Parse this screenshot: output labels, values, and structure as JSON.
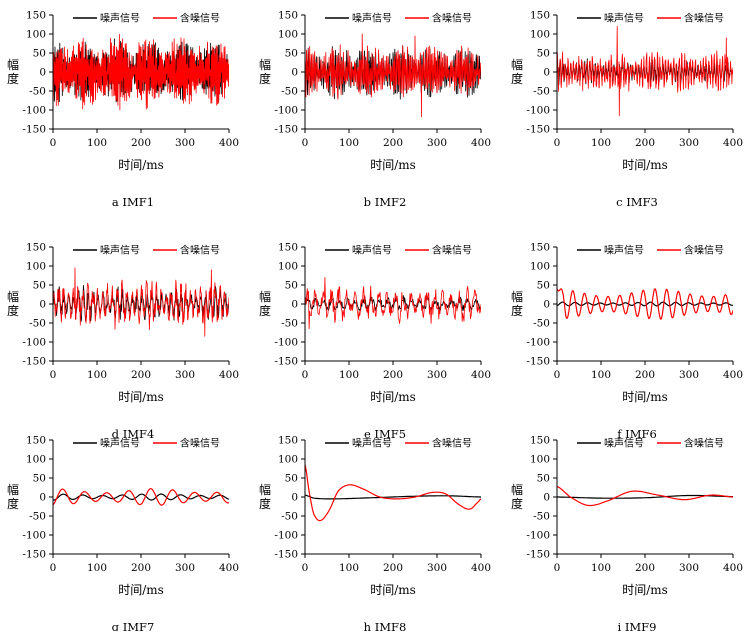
{
  "figure": {
    "series_names": [
      "噪声信号",
      "含噪信号"
    ],
    "colors": {
      "noise": "#000000",
      "noisy": "#ff0000",
      "axis": "#000000"
    }
  },
  "chart_data": [
    {
      "type": "line",
      "panel_id": "a",
      "caption": "a  IMF1",
      "xlabel": "时间/ms",
      "ylabel": "幅度",
      "xlim": [
        0,
        400
      ],
      "ylim": [
        -150,
        150
      ],
      "xticks": [
        "0",
        "100",
        "200",
        "300",
        "400"
      ],
      "yticks": [
        "150",
        "100",
        "50",
        "0",
        "-50",
        "-100",
        "-150"
      ],
      "legend": [
        "噪声信号",
        "含噪信号"
      ],
      "series": [
        {
          "name": "噪声信号",
          "color": "#000000",
          "style": "noise",
          "amp": 75,
          "cycles": 180,
          "points": 700,
          "seed": 11,
          "peaks": []
        },
        {
          "name": "含噪信号",
          "color": "#ff0000",
          "style": "noise",
          "amp": 85,
          "cycles": 180,
          "points": 700,
          "seed": 12,
          "peaks": []
        }
      ]
    },
    {
      "type": "line",
      "panel_id": "b",
      "caption": "b  IMF2",
      "xlabel": "时间/ms",
      "ylabel": "幅度",
      "xlim": [
        0,
        400
      ],
      "ylim": [
        -150,
        150
      ],
      "xticks": [
        "0",
        "100",
        "200",
        "300",
        "400"
      ],
      "yticks": [
        "150",
        "100",
        "50",
        "0",
        "-50",
        "-100",
        "-150"
      ],
      "legend": [
        "噪声信号",
        "含噪信号"
      ],
      "series": [
        {
          "name": "噪声信号",
          "color": "#000000",
          "style": "noise",
          "amp": 62,
          "cycles": 110,
          "points": 600,
          "seed": 21,
          "peaks": []
        },
        {
          "name": "含噪信号",
          "color": "#ff0000",
          "style": "noise",
          "amp": 62,
          "cycles": 110,
          "points": 600,
          "seed": 22,
          "peaks": [
            [
              130,
              100
            ],
            [
              250,
              95
            ],
            [
              265,
              -118
            ]
          ]
        }
      ]
    },
    {
      "type": "line",
      "panel_id": "c",
      "caption": "c  IMF3",
      "xlabel": "时间/ms",
      "ylabel": "幅度",
      "xlim": [
        0,
        400
      ],
      "ylim": [
        -150,
        150
      ],
      "xticks": [
        "0",
        "100",
        "200",
        "300",
        "400"
      ],
      "yticks": [
        "150",
        "100",
        "50",
        "0",
        "-50",
        "-100",
        "-150"
      ],
      "legend": [
        "噪声信号",
        "含噪信号"
      ],
      "series": [
        {
          "name": "噪声信号",
          "color": "#000000",
          "style": "noise",
          "amp": 30,
          "cycles": 65,
          "points": 500,
          "seed": 31,
          "peaks": []
        },
        {
          "name": "含噪信号",
          "color": "#ff0000",
          "style": "noise",
          "amp": 50,
          "cycles": 65,
          "points": 500,
          "seed": 32,
          "peaks": [
            [
              137,
              120
            ],
            [
              142,
              -115
            ],
            [
              385,
              90
            ]
          ]
        }
      ]
    },
    {
      "type": "line",
      "panel_id": "d",
      "caption": "d  IMF4",
      "xlabel": "时间/ms",
      "ylabel": "幅度",
      "xlim": [
        0,
        400
      ],
      "ylim": [
        -150,
        150
      ],
      "xticks": [
        "0",
        "100",
        "200",
        "300",
        "400"
      ],
      "yticks": [
        "150",
        "100",
        "50",
        "0",
        "-50",
        "-100",
        "-150"
      ],
      "legend": [
        "噪声信号",
        "含噪信号"
      ],
      "series": [
        {
          "name": "噪声信号",
          "color": "#000000",
          "style": "noise",
          "amp": 42,
          "cycles": 36,
          "points": 400,
          "seed": 41,
          "peaks": []
        },
        {
          "name": "含噪信号",
          "color": "#ff0000",
          "style": "noise",
          "amp": 58,
          "cycles": 36,
          "points": 400,
          "seed": 42,
          "peaks": [
            [
              50,
              95
            ],
            [
              345,
              -85
            ],
            [
              360,
              90
            ]
          ]
        }
      ]
    },
    {
      "type": "line",
      "panel_id": "e",
      "caption": "e  IMF5",
      "xlabel": "时间/ms",
      "ylabel": "幅度",
      "xlim": [
        0,
        400
      ],
      "ylim": [
        -150,
        150
      ],
      "xticks": [
        "0",
        "100",
        "200",
        "300",
        "400"
      ],
      "yticks": [
        "150",
        "100",
        "50",
        "0",
        "-50",
        "-100",
        "-150"
      ],
      "legend": [
        "噪声信号",
        "含噪信号"
      ],
      "series": [
        {
          "name": "噪声信号",
          "color": "#000000",
          "style": "noise",
          "amp": 20,
          "cycles": 22,
          "points": 300,
          "seed": 51,
          "peaks": []
        },
        {
          "name": "含噪信号",
          "color": "#ff0000",
          "style": "noise",
          "amp": 45,
          "cycles": 22,
          "points": 300,
          "seed": 52,
          "peaks": [
            [
              45,
              70
            ],
            [
              10,
              -65
            ]
          ]
        }
      ]
    },
    {
      "type": "line",
      "panel_id": "f",
      "caption": "f  IMF6",
      "xlabel": "时间/ms",
      "ylabel": "幅度",
      "xlim": [
        0,
        400
      ],
      "ylim": [
        -150,
        150
      ],
      "xticks": [
        "0",
        "100",
        "200",
        "300",
        "400"
      ],
      "yticks": [
        "150",
        "100",
        "50",
        "0",
        "-50",
        "-100",
        "-150"
      ],
      "legend": [
        "噪声信号",
        "含噪信号"
      ],
      "series": [
        {
          "name": "噪声信号",
          "color": "#000000",
          "style": "wave",
          "amp": 5,
          "cycles": 14,
          "points": 300,
          "seed": 61,
          "decay": 0
        },
        {
          "name": "含噪信号",
          "color": "#ff0000",
          "style": "wave",
          "amp": 40,
          "cycles": 15,
          "points": 400,
          "seed": 62,
          "decay": 0,
          "start": 40
        }
      ]
    },
    {
      "type": "line",
      "panel_id": "g",
      "caption": "g  IMF7",
      "xlabel": "时间/ms",
      "ylabel": "幅度",
      "xlim": [
        0,
        400
      ],
      "ylim": [
        -150,
        150
      ],
      "xticks": [
        "0",
        "100",
        "200",
        "300",
        "400"
      ],
      "yticks": [
        "150",
        "100",
        "50",
        "0",
        "-50",
        "-100",
        "-150"
      ],
      "legend": [
        "噪声信号",
        "含噪信号"
      ],
      "series": [
        {
          "name": "噪声信号",
          "color": "#000000",
          "style": "wave",
          "amp": 8,
          "cycles": 9,
          "points": 300,
          "seed": 71,
          "decay": 0
        },
        {
          "name": "含噪信号",
          "color": "#ff0000",
          "style": "wave",
          "amp": 22,
          "cycles": 8,
          "points": 300,
          "seed": 72,
          "decay": 0
        }
      ]
    },
    {
      "type": "line",
      "panel_id": "h",
      "caption": "h  IMF8",
      "xlabel": "时间/ms",
      "ylabel": "幅度",
      "xlim": [
        0,
        400
      ],
      "ylim": [
        -150,
        150
      ],
      "xticks": [
        "0",
        "100",
        "200",
        "300",
        "400"
      ],
      "yticks": [
        "150",
        "100",
        "50",
        "0",
        "-50",
        "-100",
        "-150"
      ],
      "legend": [
        "噪声信号",
        "含噪信号"
      ],
      "series": [
        {
          "name": "噪声信号",
          "color": "#000000",
          "style": "knots",
          "knots": [
            [
              0,
              5
            ],
            [
              20,
              -3
            ],
            [
              60,
              -5
            ],
            [
              150,
              -2
            ],
            [
              250,
              2
            ],
            [
              330,
              3
            ],
            [
              400,
              0
            ]
          ]
        },
        {
          "name": "含噪信号",
          "color": "#ff0000",
          "style": "knots",
          "knots": [
            [
              0,
              85
            ],
            [
              10,
              10
            ],
            [
              20,
              -45
            ],
            [
              35,
              -62
            ],
            [
              55,
              -35
            ],
            [
              75,
              15
            ],
            [
              100,
              32
            ],
            [
              130,
              22
            ],
            [
              170,
              0
            ],
            [
              210,
              -5
            ],
            [
              250,
              0
            ],
            [
              290,
              12
            ],
            [
              320,
              8
            ],
            [
              350,
              -20
            ],
            [
              375,
              -32
            ],
            [
              395,
              -12
            ],
            [
              400,
              -5
            ]
          ]
        }
      ]
    },
    {
      "type": "line",
      "panel_id": "i",
      "caption": "i  IMF9",
      "xlabel": "时间/ms",
      "ylabel": "幅度",
      "xlim": [
        0,
        400
      ],
      "ylim": [
        -150,
        150
      ],
      "xticks": [
        "0",
        "100",
        "200",
        "300",
        "400"
      ],
      "yticks": [
        "150",
        "100",
        "50",
        "0",
        "-50",
        "-100",
        "-150"
      ],
      "legend": [
        "噪声信号",
        "含噪信号"
      ],
      "series": [
        {
          "name": "噪声信号",
          "color": "#000000",
          "style": "knots",
          "knots": [
            [
              0,
              0
            ],
            [
              100,
              -3
            ],
            [
              200,
              -2
            ],
            [
              300,
              4
            ],
            [
              400,
              1
            ]
          ]
        },
        {
          "name": "含噪信号",
          "color": "#ff0000",
          "style": "knots",
          "knots": [
            [
              0,
              28
            ],
            [
              30,
              0
            ],
            [
              70,
              -22
            ],
            [
              110,
              -12
            ],
            [
              170,
              15
            ],
            [
              230,
              5
            ],
            [
              290,
              -7
            ],
            [
              350,
              5
            ],
            [
              400,
              0
            ]
          ]
        }
      ]
    }
  ]
}
